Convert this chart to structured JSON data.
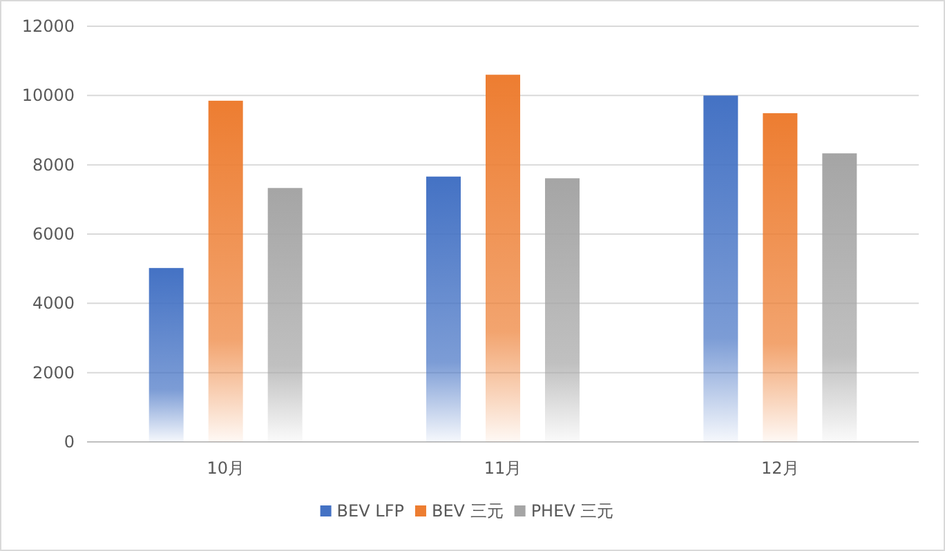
{
  "chart_data": {
    "type": "bar",
    "categories": [
      "10月",
      "11月",
      "12月"
    ],
    "series": [
      {
        "name": "BEV LFP",
        "color": "#4472c4",
        "values": [
          5020,
          7660,
          10000
        ]
      },
      {
        "name": "BEV 三元",
        "color": "#ed7d31",
        "values": [
          9850,
          10600,
          9490
        ]
      },
      {
        "name": "PHEV 三元",
        "color": "#a5a5a5",
        "values": [
          7330,
          7610,
          8330
        ]
      }
    ],
    "ylim": [
      0,
      12000
    ],
    "yticks": [
      0,
      2000,
      4000,
      6000,
      8000,
      10000,
      12000
    ],
    "grid": "y",
    "legend": "bottom"
  }
}
